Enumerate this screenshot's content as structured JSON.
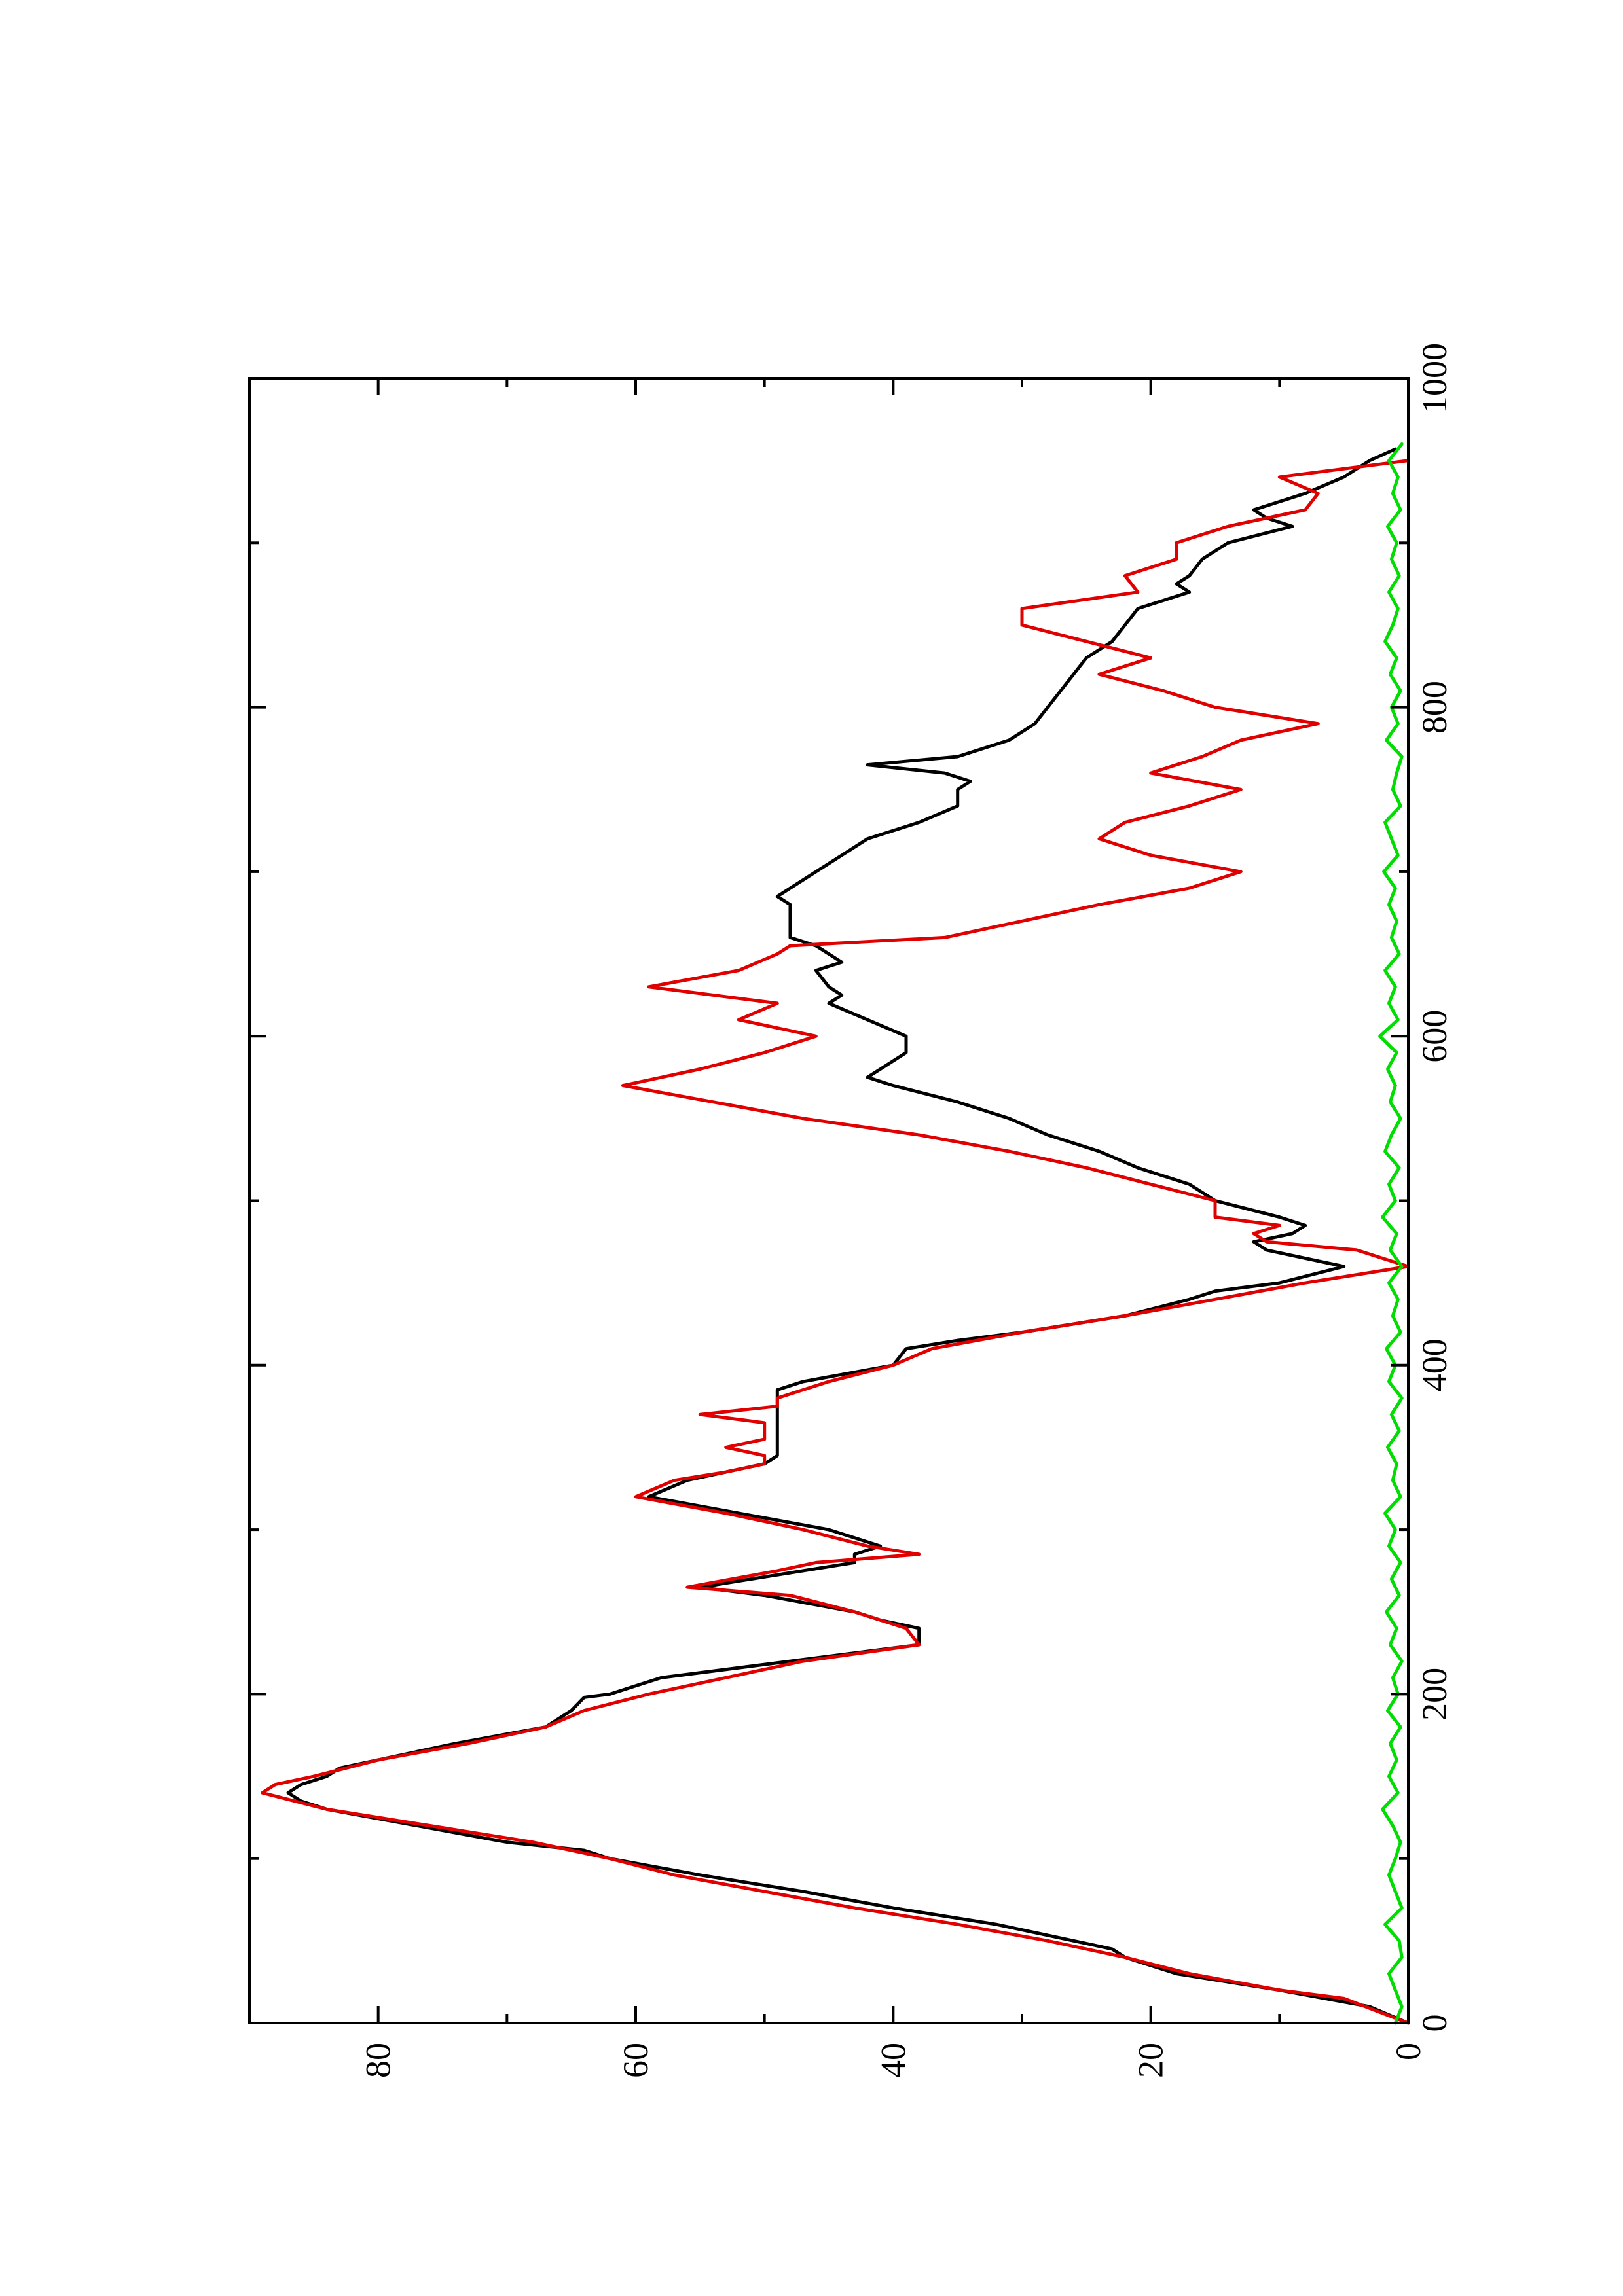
{
  "chart_data": {
    "type": "line",
    "title": "",
    "xlabel": "",
    "ylabel": "",
    "orientation": "rotated 90 degrees counter-clockwise (page printed landscape)",
    "xlim": [
      0,
      1000
    ],
    "ylim": [
      0,
      90
    ],
    "x_ticks": [
      0,
      200,
      400,
      600,
      800,
      1000
    ],
    "x_tick_labels": [
      "0",
      "200",
      "400",
      "600",
      "800",
      "1000"
    ],
    "x_minor_ticks": [
      100,
      300,
      500,
      700,
      900
    ],
    "y_ticks": [
      0,
      20,
      40,
      60,
      80
    ],
    "y_tick_labels": [
      "0",
      "20",
      "40",
      "60",
      "80"
    ],
    "y_minor_ticks": [
      10,
      30,
      50,
      70
    ],
    "grid": false,
    "legend": "none",
    "series": [
      {
        "color": "#000000",
        "points": [
          [
            0,
            0
          ],
          [
            10,
            3
          ],
          [
            20,
            10
          ],
          [
            30,
            18
          ],
          [
            40,
            22
          ],
          [
            45,
            23
          ],
          [
            50,
            26
          ],
          [
            60,
            32
          ],
          [
            70,
            40
          ],
          [
            80,
            47
          ],
          [
            90,
            55
          ],
          [
            100,
            62
          ],
          [
            105,
            64
          ],
          [
            110,
            70
          ],
          [
            120,
            77
          ],
          [
            130,
            84
          ],
          [
            135,
            86
          ],
          [
            140,
            87
          ],
          [
            145,
            86
          ],
          [
            150,
            84
          ],
          [
            155,
            83
          ],
          [
            160,
            80
          ],
          [
            170,
            74
          ],
          [
            180,
            67
          ],
          [
            190,
            65
          ],
          [
            198,
            64
          ],
          [
            200,
            62
          ],
          [
            205,
            60
          ],
          [
            210,
            58
          ],
          [
            220,
            48
          ],
          [
            230,
            38
          ],
          [
            240,
            38
          ],
          [
            245,
            41
          ],
          [
            250,
            43
          ],
          [
            260,
            50
          ],
          [
            265,
            55
          ],
          [
            275,
            47
          ],
          [
            280,
            43
          ],
          [
            285,
            43
          ],
          [
            290,
            41
          ],
          [
            300,
            45
          ],
          [
            310,
            52
          ],
          [
            320,
            59
          ],
          [
            330,
            56
          ],
          [
            335,
            53
          ],
          [
            340,
            50
          ],
          [
            345,
            49
          ],
          [
            360,
            49
          ],
          [
            375,
            49
          ],
          [
            385,
            49
          ],
          [
            390,
            47
          ],
          [
            400,
            40
          ],
          [
            410,
            39
          ],
          [
            415,
            35
          ],
          [
            420,
            30
          ],
          [
            430,
            22
          ],
          [
            440,
            17
          ],
          [
            445,
            15
          ],
          [
            450,
            10
          ],
          [
            460,
            5
          ],
          [
            470,
            11
          ],
          [
            475,
            12
          ],
          [
            480,
            9
          ],
          [
            485,
            8
          ],
          [
            490,
            10
          ],
          [
            500,
            15
          ],
          [
            510,
            17
          ],
          [
            520,
            21
          ],
          [
            530,
            24
          ],
          [
            540,
            28
          ],
          [
            550,
            31
          ],
          [
            560,
            35
          ],
          [
            570,
            40
          ],
          [
            575,
            42
          ],
          [
            580,
            41
          ],
          [
            590,
            39
          ],
          [
            600,
            39
          ],
          [
            610,
            42
          ],
          [
            620,
            45
          ],
          [
            625,
            44
          ],
          [
            630,
            45
          ],
          [
            640,
            46
          ],
          [
            645,
            44
          ],
          [
            650,
            45
          ],
          [
            655,
            46
          ],
          [
            660,
            48
          ],
          [
            670,
            48
          ],
          [
            680,
            48
          ],
          [
            685,
            49
          ],
          [
            690,
            48
          ],
          [
            700,
            46
          ],
          [
            710,
            44
          ],
          [
            720,
            42
          ],
          [
            730,
            38
          ],
          [
            740,
            35
          ],
          [
            750,
            35
          ],
          [
            755,
            34
          ],
          [
            760,
            36
          ],
          [
            765,
            42
          ],
          [
            770,
            35
          ],
          [
            780,
            31
          ],
          [
            790,
            29
          ],
          [
            800,
            28
          ],
          [
            810,
            27
          ],
          [
            820,
            26
          ],
          [
            830,
            25
          ],
          [
            840,
            23
          ],
          [
            850,
            22
          ],
          [
            860,
            21
          ],
          [
            870,
            17
          ],
          [
            875,
            18
          ],
          [
            880,
            17
          ],
          [
            890,
            16
          ],
          [
            900,
            14
          ],
          [
            910,
            9
          ],
          [
            915,
            11
          ],
          [
            920,
            12
          ],
          [
            930,
            8
          ],
          [
            940,
            5
          ],
          [
            950,
            3
          ],
          [
            957,
            1
          ]
        ]
      },
      {
        "color": "#e00000",
        "points": [
          [
            0,
            0
          ],
          [
            15,
            5
          ],
          [
            20,
            10
          ],
          [
            30,
            17
          ],
          [
            40,
            22
          ],
          [
            50,
            28
          ],
          [
            60,
            35
          ],
          [
            70,
            43
          ],
          [
            80,
            50
          ],
          [
            90,
            57
          ],
          [
            100,
            62
          ],
          [
            110,
            68
          ],
          [
            120,
            76
          ],
          [
            130,
            84
          ],
          [
            140,
            89
          ],
          [
            145,
            88
          ],
          [
            150,
            85
          ],
          [
            160,
            80
          ],
          [
            170,
            73
          ],
          [
            180,
            67
          ],
          [
            190,
            64
          ],
          [
            200,
            59
          ],
          [
            210,
            53
          ],
          [
            220,
            47
          ],
          [
            230,
            38
          ],
          [
            240,
            39
          ],
          [
            245,
            41
          ],
          [
            250,
            43
          ],
          [
            260,
            48
          ],
          [
            265,
            56
          ],
          [
            275,
            49
          ],
          [
            280,
            46
          ],
          [
            285,
            38
          ],
          [
            290,
            42
          ],
          [
            300,
            47
          ],
          [
            310,
            53
          ],
          [
            320,
            60
          ],
          [
            330,
            57
          ],
          [
            335,
            53
          ],
          [
            340,
            50
          ],
          [
            345,
            50
          ],
          [
            350,
            53
          ],
          [
            355,
            50
          ],
          [
            365,
            50
          ],
          [
            370,
            55
          ],
          [
            375,
            49
          ],
          [
            380,
            49
          ],
          [
            390,
            45
          ],
          [
            400,
            40
          ],
          [
            410,
            37
          ],
          [
            420,
            30
          ],
          [
            430,
            22
          ],
          [
            440,
            15
          ],
          [
            450,
            8
          ],
          [
            460,
            0
          ],
          [
            470,
            4
          ],
          [
            475,
            11
          ],
          [
            480,
            12
          ],
          [
            485,
            10
          ],
          [
            490,
            15
          ],
          [
            500,
            15
          ],
          [
            510,
            20
          ],
          [
            520,
            25
          ],
          [
            530,
            31
          ],
          [
            540,
            38
          ],
          [
            550,
            47
          ],
          [
            560,
            54
          ],
          [
            570,
            61
          ],
          [
            580,
            55
          ],
          [
            590,
            50
          ],
          [
            600,
            46
          ],
          [
            610,
            52
          ],
          [
            620,
            49
          ],
          [
            630,
            59
          ],
          [
            640,
            52
          ],
          [
            650,
            49
          ],
          [
            655,
            48
          ],
          [
            660,
            36
          ],
          [
            670,
            30
          ],
          [
            680,
            24
          ],
          [
            690,
            17
          ],
          [
            700,
            13
          ],
          [
            710,
            20
          ],
          [
            720,
            24
          ],
          [
            730,
            22
          ],
          [
            740,
            17
          ],
          [
            750,
            13
          ],
          [
            760,
            20
          ],
          [
            770,
            16
          ],
          [
            780,
            13
          ],
          [
            790,
            7
          ],
          [
            800,
            15
          ],
          [
            810,
            19
          ],
          [
            820,
            24
          ],
          [
            830,
            20
          ],
          [
            840,
            25
          ],
          [
            850,
            30
          ],
          [
            860,
            30
          ],
          [
            870,
            21
          ],
          [
            880,
            22
          ],
          [
            890,
            18
          ],
          [
            900,
            18
          ],
          [
            910,
            14
          ],
          [
            920,
            8
          ],
          [
            930,
            7
          ],
          [
            940,
            10
          ],
          [
            950,
            0
          ]
        ]
      },
      {
        "color": "#00dd00",
        "points": [
          [
            0,
            1
          ],
          [
            10,
            0.5
          ],
          [
            20,
            1
          ],
          [
            30,
            1.5
          ],
          [
            40,
            0.5
          ],
          [
            50,
            0.7
          ],
          [
            60,
            1.8
          ],
          [
            70,
            0.5
          ],
          [
            80,
            1
          ],
          [
            90,
            1.5
          ],
          [
            100,
            1
          ],
          [
            110,
            0.6
          ],
          [
            120,
            1.2
          ],
          [
            130,
            2
          ],
          [
            140,
            0.8
          ],
          [
            150,
            1.5
          ],
          [
            160,
            0.9
          ],
          [
            170,
            1.4
          ],
          [
            180,
            0.6
          ],
          [
            190,
            1.6
          ],
          [
            200,
            0.8
          ],
          [
            210,
            1.2
          ],
          [
            220,
            0.5
          ],
          [
            230,
            1.4
          ],
          [
            240,
            0.9
          ],
          [
            250,
            1.7
          ],
          [
            260,
            0.7
          ],
          [
            270,
            1.3
          ],
          [
            280,
            0.6
          ],
          [
            290,
            1.5
          ],
          [
            300,
            1
          ],
          [
            310,
            1.8
          ],
          [
            320,
            0.6
          ],
          [
            330,
            1.2
          ],
          [
            340,
            0.9
          ],
          [
            350,
            1.6
          ],
          [
            360,
            0.7
          ],
          [
            370,
            1.3
          ],
          [
            380,
            0.5
          ],
          [
            390,
            1.5
          ],
          [
            400,
            1
          ],
          [
            410,
            1.7
          ],
          [
            420,
            0.6
          ],
          [
            430,
            1.2
          ],
          [
            440,
            0.8
          ],
          [
            450,
            1.5
          ],
          [
            460,
            0.5
          ],
          [
            470,
            1.4
          ],
          [
            480,
            0.9
          ],
          [
            490,
            2
          ],
          [
            500,
            1
          ],
          [
            510,
            1.5
          ],
          [
            520,
            0.7
          ],
          [
            530,
            1.8
          ],
          [
            540,
            1.3
          ],
          [
            550,
            0.6
          ],
          [
            560,
            1.4
          ],
          [
            570,
            1
          ],
          [
            580,
            1.6
          ],
          [
            590,
            0.9
          ],
          [
            600,
            2.2
          ],
          [
            610,
            0.8
          ],
          [
            620,
            1.5
          ],
          [
            630,
            1
          ],
          [
            640,
            1.8
          ],
          [
            650,
            0.7
          ],
          [
            660,
            1.3
          ],
          [
            670,
            0.9
          ],
          [
            680,
            1.5
          ],
          [
            690,
            1
          ],
          [
            700,
            1.9
          ],
          [
            710,
            0.8
          ],
          [
            720,
            1.3
          ],
          [
            730,
            1.8
          ],
          [
            740,
            0.6
          ],
          [
            750,
            1.2
          ],
          [
            760,
            0.9
          ],
          [
            770,
            0.5
          ],
          [
            780,
            1.7
          ],
          [
            790,
            0.8
          ],
          [
            800,
            1.3
          ],
          [
            810,
            0.6
          ],
          [
            820,
            1.4
          ],
          [
            830,
            0.9
          ],
          [
            840,
            1.8
          ],
          [
            850,
            1.2
          ],
          [
            860,
            0.8
          ],
          [
            870,
            1.5
          ],
          [
            880,
            0.7
          ],
          [
            890,
            1.3
          ],
          [
            900,
            0.9
          ],
          [
            910,
            1.6
          ],
          [
            920,
            0.6
          ],
          [
            930,
            1.2
          ],
          [
            940,
            0.8
          ],
          [
            950,
            1.5
          ],
          [
            960,
            0.5
          ]
        ]
      }
    ]
  }
}
